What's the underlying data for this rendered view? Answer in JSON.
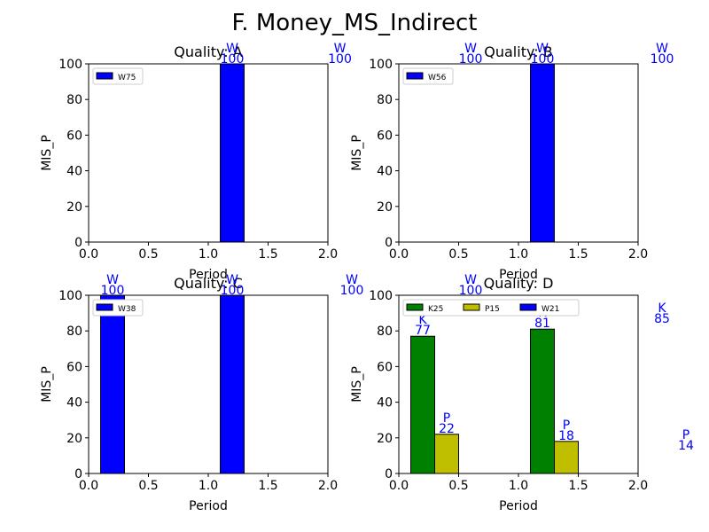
{
  "suptitle": "F. Money_MS_Indirect",
  "chart_data": [
    {
      "type": "bar",
      "title": "Quality: A",
      "xlabel": "Period",
      "ylabel": "MIS_P",
      "xlim": [
        0,
        2
      ],
      "ylim": [
        0,
        100
      ],
      "xticks": [
        "0.0",
        "0.5",
        "1.0",
        "1.5",
        "2.0"
      ],
      "yticks": [
        "0",
        "20",
        "40",
        "60",
        "80",
        "100"
      ],
      "bars": [
        {
          "x_start": 1.1,
          "x_end": 1.3,
          "value": 100,
          "color": "#0000ff",
          "letter": "W",
          "label": "100"
        }
      ],
      "overflow_labels": [
        {
          "x": 1.2,
          "letter": "W",
          "label": "100"
        },
        {
          "x": 2.1,
          "letter": "W",
          "label": "100"
        }
      ],
      "legend": {
        "position": "upper left",
        "entries": [
          {
            "label": "W75",
            "color": "#0000ff"
          }
        ]
      }
    },
    {
      "type": "bar",
      "title": "Quality: B",
      "xlabel": "Period",
      "ylabel": "MIS_P",
      "xlim": [
        0,
        2
      ],
      "ylim": [
        0,
        100
      ],
      "xticks": [
        "0.0",
        "0.5",
        "1.0",
        "1.5",
        "2.0"
      ],
      "yticks": [
        "0",
        "20",
        "40",
        "60",
        "80",
        "100"
      ],
      "bars": [
        {
          "x_start": 1.1,
          "x_end": 1.3,
          "value": 100,
          "color": "#0000ff",
          "letter": "W",
          "label": "100"
        }
      ],
      "overflow_labels": [
        {
          "x": 0.6,
          "letter": "W",
          "label": "100"
        },
        {
          "x": 1.2,
          "letter": "W",
          "label": "100"
        },
        {
          "x": 2.2,
          "letter": "W",
          "label": "100"
        }
      ],
      "legend": {
        "position": "upper left",
        "entries": [
          {
            "label": "W56",
            "color": "#0000ff"
          }
        ]
      }
    },
    {
      "type": "bar",
      "title": "Quality: C",
      "xlabel": "Period",
      "ylabel": "MIS_P",
      "xlim": [
        0,
        2
      ],
      "ylim": [
        0,
        100
      ],
      "xticks": [
        "0.0",
        "0.5",
        "1.0",
        "1.5",
        "2.0"
      ],
      "yticks": [
        "0",
        "20",
        "40",
        "60",
        "80",
        "100"
      ],
      "bars": [
        {
          "x_start": 0.1,
          "x_end": 0.3,
          "value": 100,
          "color": "#0000ff",
          "letter": "W",
          "label": "100"
        },
        {
          "x_start": 1.1,
          "x_end": 1.3,
          "value": 100,
          "color": "#0000ff",
          "letter": "W",
          "label": "100"
        }
      ],
      "overflow_labels": [
        {
          "x": 0.2,
          "letter": "W",
          "label": "100"
        },
        {
          "x": 1.2,
          "letter": "W",
          "label": "100"
        },
        {
          "x": 2.2,
          "letter": "W",
          "label": "100"
        }
      ],
      "legend": {
        "position": "upper left",
        "entries": [
          {
            "label": "W38",
            "color": "#0000ff"
          }
        ]
      }
    },
    {
      "type": "bar",
      "title": "Quality: D",
      "xlabel": "Period",
      "ylabel": "MIS_P",
      "xlim": [
        0,
        2
      ],
      "ylim": [
        0,
        100
      ],
      "xticks": [
        "0.0",
        "0.5",
        "1.0",
        "1.5",
        "2.0"
      ],
      "yticks": [
        "0",
        "20",
        "40",
        "60",
        "80",
        "100"
      ],
      "bars": [
        {
          "x_start": 0.1,
          "x_end": 0.3,
          "value": 77,
          "color": "#008000",
          "letter": "K",
          "label": "77"
        },
        {
          "x_start": 0.3,
          "x_end": 0.5,
          "value": 22,
          "color": "#bfbf00",
          "letter": "P",
          "label": "22"
        },
        {
          "x_start": 1.1,
          "x_end": 1.3,
          "value": 81,
          "color": "#008000",
          "letter": "K",
          "label": "81"
        },
        {
          "x_start": 1.3,
          "x_end": 1.5,
          "value": 18,
          "color": "#bfbf00",
          "letter": "P",
          "label": "18"
        }
      ],
      "overflow_labels": [
        {
          "x": 0.6,
          "letter": "W",
          "label": "100"
        },
        {
          "x": 2.2,
          "letter": "K",
          "label": "85"
        },
        {
          "x": 2.4,
          "letter": "P",
          "label": "14"
        }
      ],
      "legend": {
        "position": "upper left",
        "entries": [
          {
            "label": "K25",
            "color": "#008000"
          },
          {
            "label": "P15",
            "color": "#bfbf00"
          },
          {
            "label": "W21",
            "color": "#0000ff"
          }
        ]
      }
    }
  ]
}
